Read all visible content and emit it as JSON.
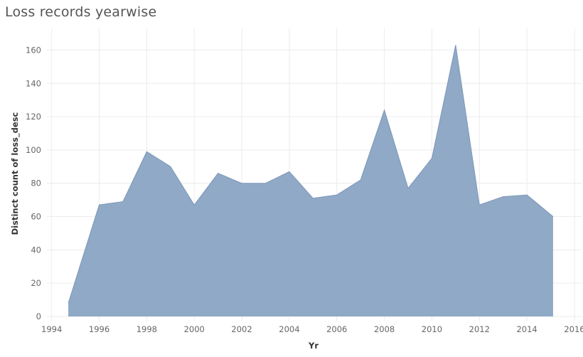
{
  "title": "Loss records yearwise",
  "chart_data": {
    "type": "area",
    "title": "Loss records yearwise",
    "xlabel": "Yr",
    "ylabel": "Distinct count of loss_desc",
    "x": [
      1994.7,
      1996,
      1997,
      1998,
      1999,
      2000,
      2001,
      2002,
      2003,
      2004,
      2005,
      2006,
      2007,
      2008,
      2009,
      2010,
      2011,
      2012,
      2013,
      2014,
      2015.1
    ],
    "values": [
      8,
      67,
      69,
      99,
      90,
      67,
      86,
      80,
      80,
      87,
      71,
      73,
      82,
      124,
      77,
      95,
      163,
      67,
      72,
      73,
      60
    ],
    "xticks": [
      "1994",
      "1996",
      "1998",
      "2000",
      "2002",
      "2004",
      "2006",
      "2008",
      "2010",
      "2012",
      "2014",
      "2016"
    ],
    "yticks": [
      "0",
      "20",
      "40",
      "60",
      "80",
      "100",
      "120",
      "140",
      "160"
    ],
    "xlim": [
      1993.8,
      2016.3
    ],
    "ylim": [
      -3,
      173
    ],
    "grid": true,
    "fill_color": "#8fa9c6",
    "line_color": "#7d98b8"
  }
}
